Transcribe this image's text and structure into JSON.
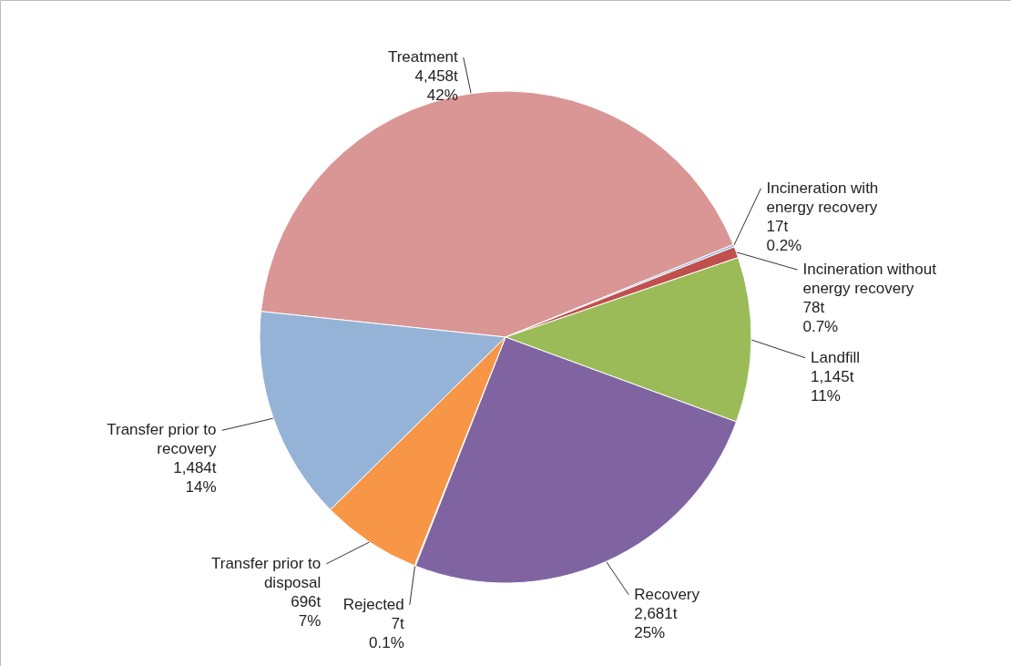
{
  "chart_data": {
    "type": "pie",
    "categories": [
      "Treatment",
      "Incineration with energy recovery",
      "Incineration without energy recovery",
      "Landfill",
      "Recovery",
      "Rejected",
      "Transfer prior to disposal",
      "Transfer prior to recovery"
    ],
    "values": [
      4458,
      17,
      78,
      1145,
      2681,
      7,
      696,
      1484
    ],
    "colors": [
      "#d99694",
      "#8eb4e3",
      "#c0504d",
      "#9bbb59",
      "#8064a2",
      "#4bacc6",
      "#f79646",
      "#95b3d7"
    ],
    "value_labels": [
      "4,458t",
      "17t",
      "78t",
      "1,145t",
      "2,681t",
      "7t",
      "696t",
      "1,484t"
    ],
    "annotations": [
      "42%",
      "0.2%",
      "0.7%",
      "11%",
      "25%",
      "0.1%",
      "7%",
      "14%"
    ]
  }
}
